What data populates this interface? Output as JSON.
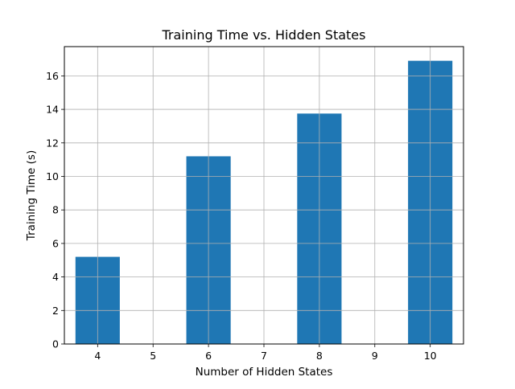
{
  "chart_data": {
    "type": "bar",
    "title": "Training Time vs. Hidden States",
    "xlabel": "Number of Hidden States",
    "ylabel": "Training Time (s)",
    "x": [
      4,
      6,
      8,
      10
    ],
    "values": [
      5.2,
      11.2,
      13.75,
      16.9
    ],
    "bar_width": 0.8,
    "xlim": [
      3.4,
      10.6
    ],
    "ylim": [
      0,
      17.745
    ],
    "xticks": [
      4,
      5,
      6,
      7,
      8,
      9,
      10
    ],
    "yticks": [
      0,
      2,
      4,
      6,
      8,
      10,
      12,
      14,
      16
    ],
    "grid": true,
    "bar_color": "#1f77b4"
  }
}
